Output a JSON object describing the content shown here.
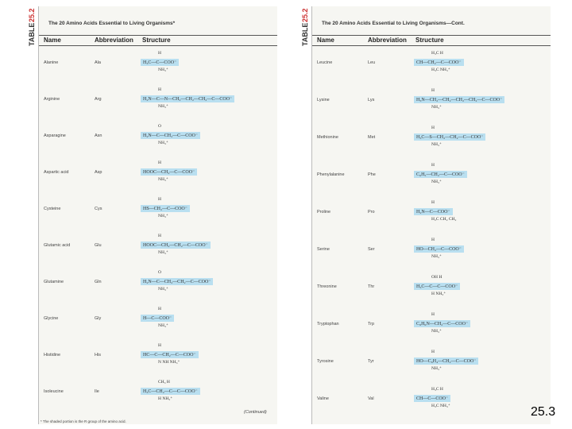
{
  "left": {
    "table_label": "TABLE",
    "table_number": "25.2",
    "title": "The 20 Amino Acids Essential to Living Organisms*",
    "headers": [
      "Name",
      "Abbreviation",
      "Structure"
    ],
    "rows": [
      {
        "name": "Alanine",
        "abbr": "Ala",
        "top": "H",
        "main": "H₃C—C—COO⁻",
        "bottom": "NH₃⁺"
      },
      {
        "name": "Arginine",
        "abbr": "Arg",
        "top": "H",
        "main": "H₂N—C—N—CH₂—CH₂—CH₂—C—COO⁻",
        "bottom": "NH₃⁺"
      },
      {
        "name": "Asparagine",
        "abbr": "Asn",
        "top": "O",
        "main": "H₂N—C—CH₂—C—COO⁻",
        "bottom": "NH₃⁺"
      },
      {
        "name": "Aspartic acid",
        "abbr": "Asp",
        "top": "H",
        "main": "HOOC—CH₂—C—COO⁻",
        "bottom": "NH₃⁺"
      },
      {
        "name": "Cysteine",
        "abbr": "Cys",
        "top": "H",
        "main": "HS—CH₂—C—COO⁻",
        "bottom": "NH₃⁺"
      },
      {
        "name": "Glutamic acid",
        "abbr": "Glu",
        "top": "H",
        "main": "HOOC—CH₂—CH₂—C—COO⁻",
        "bottom": "NH₃⁺"
      },
      {
        "name": "Glutamine",
        "abbr": "Gln",
        "top": "O",
        "main": "H₂N—C—CH₂—CH₂—C—COO⁻",
        "bottom": "NH₃⁺"
      },
      {
        "name": "Glycine",
        "abbr": "Gly",
        "top": "H",
        "main": "H—C—COO⁻",
        "bottom": "NH₃⁺"
      },
      {
        "name": "Histidine",
        "abbr": "His",
        "top": "H",
        "main": "HC—C—CH₂—C—COO⁻",
        "bottom": "N  NH   NH₃⁺"
      },
      {
        "name": "Isoleucine",
        "abbr": "Ile",
        "top": "CH₃  H",
        "main": "H₃C—CH₂—C—C—COO⁻",
        "bottom": "H  NH₃⁺"
      }
    ],
    "continued": "(Continued)",
    "footnote": "* The shaded portion is the R group of the amino acid."
  },
  "right": {
    "table_label": "TABLE",
    "table_number": "25.2",
    "title": "The 20 Amino Acids Essential to Living Organisms—Cont.",
    "headers": [
      "Name",
      "Abbreviation",
      "Structure"
    ],
    "rows": [
      {
        "name": "Leucine",
        "abbr": "Leu",
        "top": "H₃C        H",
        "main": "CH—CH₂—C—COO⁻",
        "bottom": "H₃C     NH₃⁺"
      },
      {
        "name": "Lysine",
        "abbr": "Lys",
        "top": "H",
        "main": "H₃N—CH₂—CH₂—CH₂—CH₂—C—COO⁻",
        "bottom": "NH₃⁺"
      },
      {
        "name": "Methionine",
        "abbr": "Met",
        "top": "H",
        "main": "H₃C—S—CH₂—CH₂—C—COO⁻",
        "bottom": "NH₃⁺"
      },
      {
        "name": "Phenylalanine",
        "abbr": "Phe",
        "top": "H",
        "main": "C₆H₅—CH₂—C—COO⁻",
        "bottom": "NH₃⁺"
      },
      {
        "name": "Proline",
        "abbr": "Pro",
        "top": "H",
        "main": "H₂N—C—COO⁻",
        "bottom": "H₂C  CH₂  CH₂"
      },
      {
        "name": "Serine",
        "abbr": "Ser",
        "top": "H",
        "main": "HO—CH₂—C—COO⁻",
        "bottom": "NH₃⁺"
      },
      {
        "name": "Threonine",
        "abbr": "Thr",
        "top": "OH  H",
        "main": "H₃C—C—C—COO⁻",
        "bottom": "H  NH₃⁺"
      },
      {
        "name": "Tryptophan",
        "abbr": "Trp",
        "top": "H",
        "main": "C₈H₆N—CH₂—C—COO⁻",
        "bottom": "NH₃⁺"
      },
      {
        "name": "Tyrosine",
        "abbr": "Tyr",
        "top": "H",
        "main": "HO—C₆H₄—CH₂—C—COO⁻",
        "bottom": "NH₃⁺"
      },
      {
        "name": "Valine",
        "abbr": "Val",
        "top": "H₃C     H",
        "main": "CH—C—COO⁻",
        "bottom": "H₃C   NH₃⁺"
      }
    ]
  },
  "slide_number": "25.3"
}
